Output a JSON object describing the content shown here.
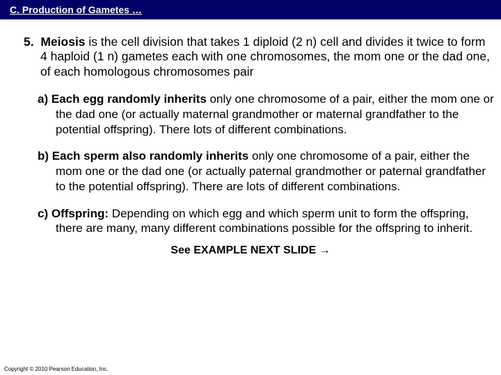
{
  "titlebar": {
    "heading": "C.  Production of Gametes …",
    "bg_color": "#000066",
    "text_color": "#ffffff",
    "fontsize": 14
  },
  "item5": {
    "number": "5.",
    "lead": "Meiosis",
    "rest": " is the cell division that takes 1 diploid (2 n) cell and divides it twice to form 4 haploid (1 n) gametes each with one chromosomes, the mom one or the dad one, of each homologous chromosomes pair",
    "fontsize": 17.5
  },
  "sub_a": {
    "label": "a)",
    "lead": "Each egg randomly inherits",
    "rest": " only one chromosome of a pair, either the mom one or the dad one (or actually maternal grandmother or maternal grandfather to the potential offspring).  There lots of different combinations."
  },
  "sub_b": {
    "label": "b)",
    "lead": "Each sperm also randomly inherits",
    "rest": " only one chromosome of a pair, either the mom one or the dad one (or actually paternal grandmother or paternal grandfather to the potential offspring). There are lots of different combinations."
  },
  "sub_c": {
    "label": "c)",
    "lead": "Offspring:",
    "rest": " Depending on which egg and which sperm unit to form the offspring, there are many, many different combinations possible for the offspring to inherit."
  },
  "see_next": "See EXAMPLE NEXT SLIDE  →",
  "copyright": "Copyright © 2010 Pearson Education, Inc.",
  "body_fontsize": 17,
  "background_color": "#ffffff",
  "text_color": "#000000"
}
